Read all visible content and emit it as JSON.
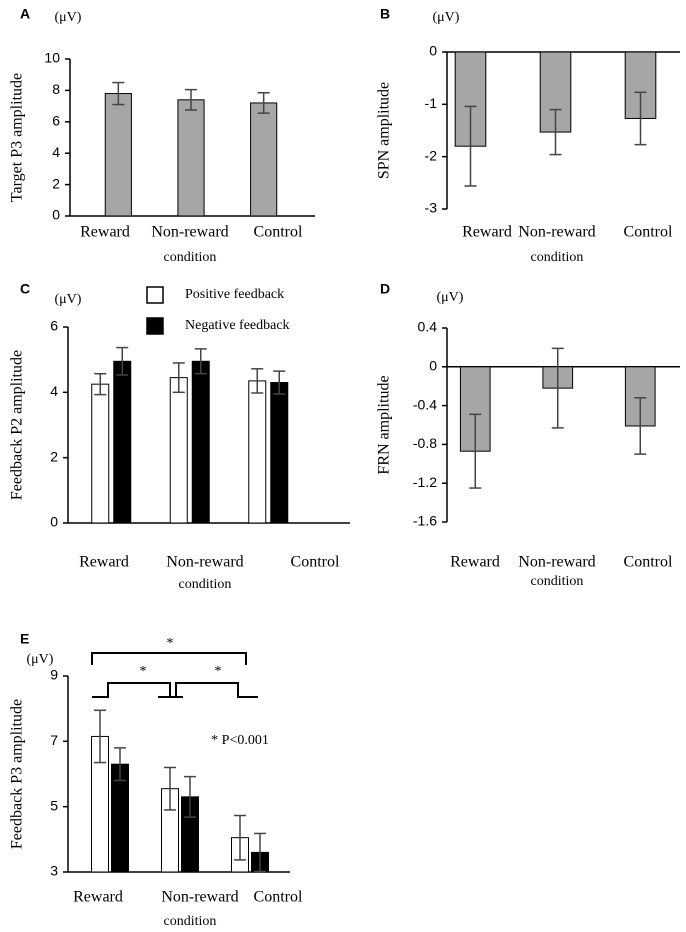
{
  "chart_data": [
    {
      "type": "bar",
      "panel_label": "A",
      "unit_label": "(μV)",
      "y_label": "Target P3  amplitude",
      "x_label": "condition",
      "categories": [
        "Reward",
        "Non-reward",
        "Control"
      ],
      "values": [
        7.8,
        7.4,
        7.2
      ],
      "errors": [
        0.7,
        0.65,
        0.65
      ],
      "color": "#a6a6a6",
      "ylim": [
        0,
        10
      ],
      "yticks": [
        0,
        2,
        4,
        6,
        8,
        10
      ]
    },
    {
      "type": "bar",
      "panel_label": "B",
      "unit_label": "(μV)",
      "y_label": "SPN amplitude",
      "x_label": "condition",
      "categories": [
        "Reward",
        "Non-reward",
        "Control"
      ],
      "values": [
        -1.8,
        -1.53,
        -1.27
      ],
      "errors": [
        0.76,
        0.43,
        0.5
      ],
      "color": "#a6a6a6",
      "ylim": [
        -3,
        0
      ],
      "yticks": [
        0,
        -1,
        -2,
        -3
      ]
    },
    {
      "type": "grouped_bar",
      "panel_label": "C",
      "unit_label": "(μV)",
      "y_label": "Feedback P2 amplitude",
      "x_label": "condition",
      "categories": [
        "Reward",
        "Non-reward",
        "Control"
      ],
      "series": [
        {
          "name": "Positive feedback",
          "color": "#ffffff",
          "values": [
            4.25,
            4.45,
            4.35
          ],
          "errors": [
            0.32,
            0.45,
            0.37
          ]
        },
        {
          "name": "Negative feedback",
          "color": "#000000",
          "values": [
            4.95,
            4.95,
            4.3
          ],
          "errors": [
            0.42,
            0.38,
            0.35
          ]
        }
      ],
      "ylim": [
        0,
        6
      ],
      "yticks": [
        0,
        2,
        4,
        6
      ]
    },
    {
      "type": "bar",
      "panel_label": "D",
      "unit_label": "(μV)",
      "y_label": "FRN amplitude",
      "x_label": "condition",
      "categories": [
        "Reward",
        "Non-reward",
        "Control"
      ],
      "values": [
        -0.87,
        -0.22,
        -0.61
      ],
      "errors": [
        0.38,
        0.41,
        0.29
      ],
      "color": "#a6a6a6",
      "ylim": [
        -1.6,
        0.4
      ],
      "yticks": [
        0.4,
        0,
        -0.4,
        -0.8,
        -1.2,
        -1.6
      ]
    },
    {
      "type": "grouped_bar",
      "panel_label": "E",
      "unit_label": "(μV)",
      "y_label": "Feedback P3 amplitude",
      "x_label": "condition",
      "categories": [
        "Reward",
        "Non-reward",
        "Control"
      ],
      "series": [
        {
          "color": "#ffffff",
          "values": [
            7.15,
            5.55,
            4.05
          ],
          "errors": [
            0.8,
            0.65,
            0.68
          ]
        },
        {
          "color": "#000000",
          "values": [
            6.3,
            5.3,
            3.6
          ],
          "errors": [
            0.5,
            0.62,
            0.58
          ]
        }
      ],
      "ylim": [
        3,
        9
      ],
      "yticks": [
        3,
        5,
        7,
        9
      ],
      "annotations": [
        "*",
        "*",
        "*",
        "*  P<0.001"
      ]
    }
  ]
}
